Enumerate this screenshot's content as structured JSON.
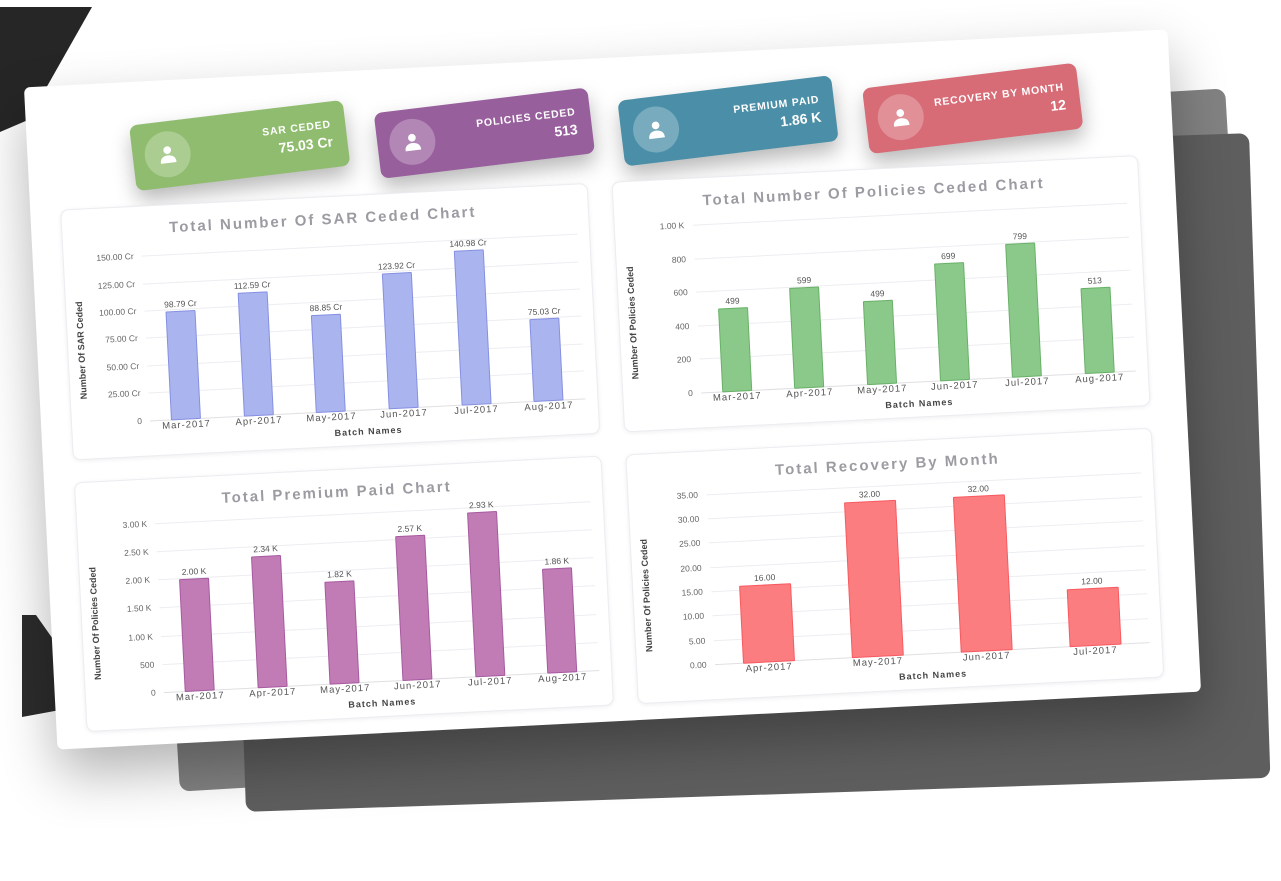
{
  "page": {
    "background": "#ffffff"
  },
  "kpis": [
    {
      "label": "SAR CEDED",
      "value": "75.03 Cr",
      "color": "#8fbc6e",
      "icon": "person-icon"
    },
    {
      "label": "POLICIES CEDED",
      "value": "513",
      "color": "#985f9d",
      "icon": "person-icon"
    },
    {
      "label": "PREMIUM PAID",
      "value": "1.86 K",
      "color": "#4a8fa7",
      "icon": "person-icon"
    },
    {
      "label": "RECOVERY BY MONTH",
      "value": "12",
      "color": "#d76b76",
      "icon": "person-icon"
    }
  ],
  "chart_data": [
    {
      "type": "bar",
      "title": "Total Number Of SAR Ceded Chart",
      "xlabel": "Batch Names",
      "ylabel": "Number Of SAR Ceded",
      "categories": [
        "Mar-2017",
        "Apr-2017",
        "May-2017",
        "Jun-2017",
        "Jul-2017",
        "Aug-2017"
      ],
      "values": [
        98.79,
        112.59,
        88.85,
        123.92,
        140.98,
        75.03
      ],
      "value_labels": [
        "98.79 Cr",
        "112.59 Cr",
        "88.85 Cr",
        "123.92 Cr",
        "140.98 Cr",
        "75.03 Cr"
      ],
      "yticks": [
        {
          "v": 0,
          "label": "0"
        },
        {
          "v": 25,
          "label": "25.00 Cr"
        },
        {
          "v": 50,
          "label": "50.00 Cr"
        },
        {
          "v": 75,
          "label": "75.00 Cr"
        },
        {
          "v": 100,
          "label": "100.00 Cr"
        },
        {
          "v": 125,
          "label": "125.00 Cr"
        },
        {
          "v": 150,
          "label": "150.00 Cr"
        }
      ],
      "ylim": [
        0,
        162
      ],
      "grid": true,
      "legend": false,
      "bar_fill": "#aab4ee",
      "bar_border": "#8690e2"
    },
    {
      "type": "bar",
      "title": "Total Number Of Policies Ceded Chart",
      "xlabel": "Batch Names",
      "ylabel": "Number Of Policies Ceded",
      "categories": [
        "Mar-2017",
        "Apr-2017",
        "May-2017",
        "Jun-2017",
        "Jul-2017",
        "Aug-2017"
      ],
      "values": [
        499,
        599,
        499,
        699,
        799,
        513
      ],
      "value_labels": [
        "499",
        "599",
        "499",
        "699",
        "799",
        "513"
      ],
      "yticks": [
        {
          "v": 0,
          "label": "0"
        },
        {
          "v": 200,
          "label": "200"
        },
        {
          "v": 400,
          "label": "400"
        },
        {
          "v": 600,
          "label": "600"
        },
        {
          "v": 800,
          "label": "800"
        },
        {
          "v": 1000,
          "label": "1.00 K"
        }
      ],
      "ylim": [
        0,
        1060
      ],
      "grid": true,
      "legend": false,
      "bar_fill": "#8bc98a",
      "bar_border": "#68b168"
    },
    {
      "type": "bar",
      "title": "Total Premium Paid Chart",
      "xlabel": "Batch Names",
      "ylabel": "Number Of Policies Ceded",
      "categories": [
        "Mar-2017",
        "Apr-2017",
        "May-2017",
        "Jun-2017",
        "Jul-2017",
        "Aug-2017"
      ],
      "values": [
        2000,
        2340,
        1820,
        2570,
        2930,
        1860
      ],
      "value_labels": [
        "2.00 K",
        "2.34 K",
        "1.82 K",
        "2.57 K",
        "2.93 K",
        "1.86 K"
      ],
      "yticks": [
        {
          "v": 0,
          "label": "0"
        },
        {
          "v": 500,
          "label": "500"
        },
        {
          "v": 1000,
          "label": "1.00 K"
        },
        {
          "v": 1500,
          "label": "1.50 K"
        },
        {
          "v": 2000,
          "label": "2.00 K"
        },
        {
          "v": 2500,
          "label": "2.50 K"
        },
        {
          "v": 3000,
          "label": "3.00 K"
        }
      ],
      "ylim": [
        0,
        3150
      ],
      "grid": true,
      "legend": false,
      "bar_fill": "#c17cb5",
      "bar_border": "#a75aa0"
    },
    {
      "type": "bar",
      "title": "Total Recovery By Month",
      "xlabel": "Batch Names",
      "ylabel": "Number Of Policies Ceded",
      "categories": [
        "Apr-2017",
        "May-2017",
        "Jun-2017",
        "Jul-2017"
      ],
      "values": [
        16,
        32,
        32,
        12
      ],
      "value_labels": [
        "16.00",
        "32.00",
        "32.00",
        "12.00"
      ],
      "yticks": [
        {
          "v": 0,
          "label": "0.00"
        },
        {
          "v": 5,
          "label": "5.00"
        },
        {
          "v": 10,
          "label": "10.00"
        },
        {
          "v": 15,
          "label": "15.00"
        },
        {
          "v": 20,
          "label": "20.00"
        },
        {
          "v": 25,
          "label": "25.00"
        },
        {
          "v": 30,
          "label": "30.00"
        },
        {
          "v": 35,
          "label": "35.00"
        }
      ],
      "ylim": [
        0,
        36.5
      ],
      "grid": true,
      "legend": false,
      "bar_fill": "#fb7d80",
      "bar_border": "#f85a60"
    }
  ]
}
